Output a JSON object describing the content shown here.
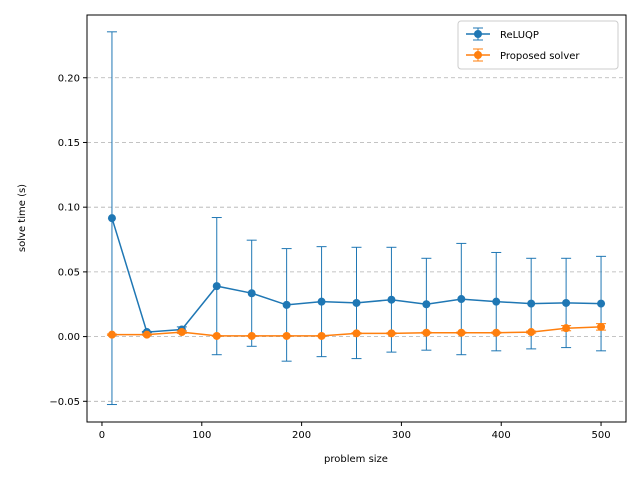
{
  "chart_data": {
    "type": "line",
    "title": "",
    "xlabel": "problem size",
    "ylabel": "solve time (s)",
    "xlim": [
      -15,
      525
    ],
    "ylim": [
      -0.066,
      0.2485
    ],
    "xticks": [
      0,
      100,
      200,
      300,
      400,
      500
    ],
    "xtick_labels": [
      "0",
      "100",
      "200",
      "300",
      "400",
      "500"
    ],
    "yticks": [
      -0.05,
      0.0,
      0.05,
      0.1,
      0.15,
      0.2
    ],
    "ytick_labels": [
      "−0.05",
      "0.00",
      "0.05",
      "0.10",
      "0.15",
      "0.20"
    ],
    "grid": "y-dashed",
    "legend_position": "top-right",
    "x": [
      10,
      45,
      80,
      115,
      150,
      185,
      220,
      255,
      290,
      325,
      360,
      395,
      430,
      465,
      500
    ],
    "series": [
      {
        "name": "ReLUQP",
        "color": "#1f77b4",
        "marker": "circle",
        "values": [
          0.0915,
          0.0035,
          0.0055,
          0.039,
          0.0335,
          0.0245,
          0.027,
          0.026,
          0.0285,
          0.025,
          0.029,
          0.027,
          0.0255,
          0.026,
          0.0255
        ],
        "error": [
          0.144,
          0.0005,
          0.002,
          0.053,
          0.041,
          0.0435,
          0.0425,
          0.043,
          0.0405,
          0.0355,
          0.043,
          0.038,
          0.035,
          0.0345,
          0.0365
        ]
      },
      {
        "name": "Proposed solver",
        "color": "#ff7f0e",
        "marker": "circle",
        "values": [
          0.0015,
          0.0015,
          0.0035,
          0.0005,
          0.0005,
          0.0005,
          0.0005,
          0.0025,
          0.0025,
          0.003,
          0.003,
          0.003,
          0.0035,
          0.0065,
          0.0075
        ],
        "error": [
          0.0005,
          0.0005,
          0.001,
          0.0003,
          0.0003,
          0.0003,
          0.0003,
          0.0005,
          0.0005,
          0.0005,
          0.0005,
          0.0005,
          0.0008,
          0.002,
          0.0025
        ]
      }
    ]
  }
}
